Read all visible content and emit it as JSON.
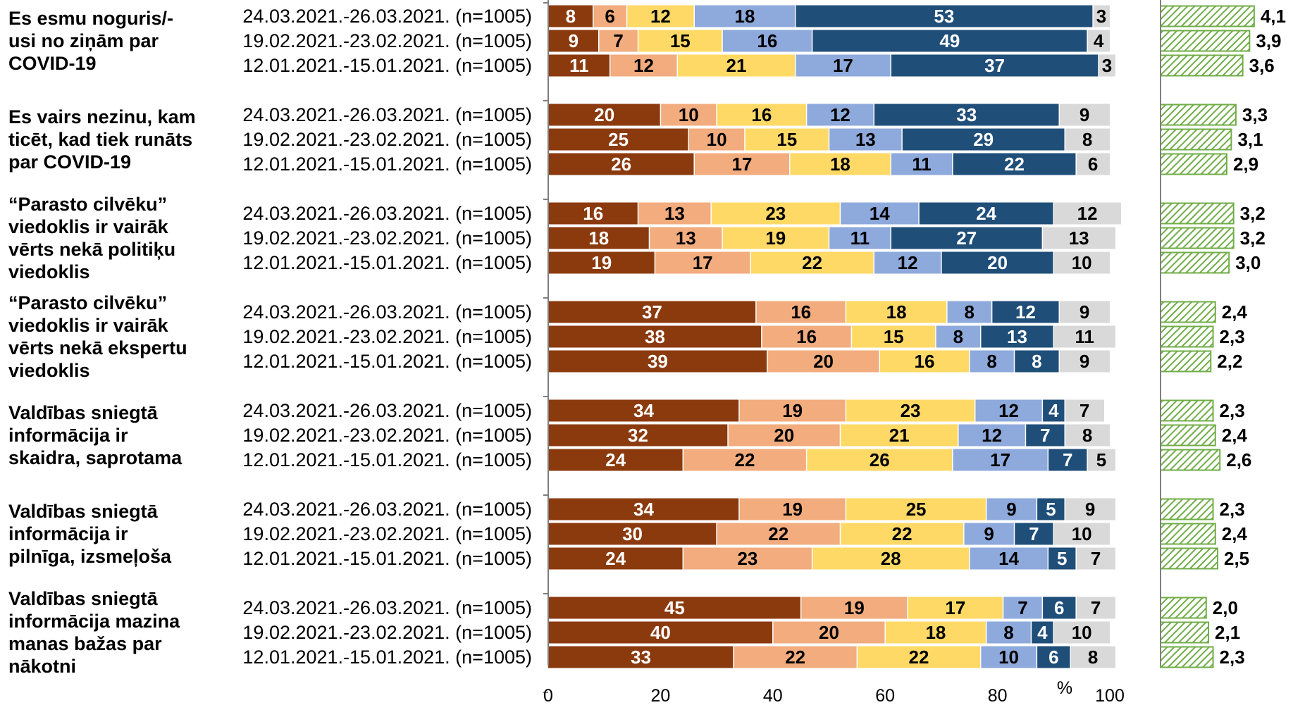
{
  "chart_data": {
    "type": "bar",
    "orientation": "horizontal",
    "stacked": true,
    "x_unit_label": "%",
    "xlim": [
      0,
      100
    ],
    "x_ticks": [
      "0",
      "20",
      "40",
      "60",
      "80",
      "100"
    ],
    "grid": false,
    "colors": [
      "#8B3A0E",
      "#F2AC7E",
      "#FFD966",
      "#8EA9DB",
      "#1F4E79",
      "#D9D9D9"
    ],
    "avg_color": "#70AD47",
    "avg_xlim": [
      0,
      5
    ],
    "groups": [
      {
        "label_lines": [
          "Es esmu noguris/-",
          "usi no ziņām par",
          "COVID-19"
        ],
        "rows": [
          {
            "label": "24.03.2021.-26.03.2021. (n=1005)",
            "values": [
              8,
              6,
              12,
              18,
              53,
              3
            ],
            "avg": "4,1"
          },
          {
            "label": "19.02.2021.-23.02.2021. (n=1005)",
            "values": [
              9,
              7,
              15,
              16,
              49,
              4
            ],
            "avg": "3,9"
          },
          {
            "label": "12.01.2021.-15.01.2021. (n=1005)",
            "values": [
              11,
              12,
              21,
              17,
              37,
              3
            ],
            "avg": "3,6"
          }
        ]
      },
      {
        "label_lines": [
          "Es vairs nezinu, kam",
          "ticēt, kad tiek runāts",
          "par COVID-19"
        ],
        "rows": [
          {
            "label": "24.03.2021.-26.03.2021. (n=1005)",
            "values": [
              20,
              10,
              16,
              12,
              33,
              9
            ],
            "avg": "3,3"
          },
          {
            "label": "19.02.2021.-23.02.2021. (n=1005)",
            "values": [
              25,
              10,
              15,
              13,
              29,
              8
            ],
            "avg": "3,1"
          },
          {
            "label": "12.01.2021.-15.01.2021. (n=1005)",
            "values": [
              26,
              17,
              18,
              11,
              22,
              6
            ],
            "avg": "2,9"
          }
        ]
      },
      {
        "label_lines": [
          "“Parasto cilvēku”",
          "viedoklis ir vairāk",
          "vērts nekā politiķu",
          "viedoklis"
        ],
        "rows": [
          {
            "label": "24.03.2021.-26.03.2021. (n=1005)",
            "values": [
              16,
              13,
              23,
              14,
              24,
              12
            ],
            "avg": "3,2"
          },
          {
            "label": "19.02.2021.-23.02.2021. (n=1005)",
            "values": [
              18,
              13,
              19,
              11,
              27,
              13
            ],
            "avg": "3,2"
          },
          {
            "label": "12.01.2021.-15.01.2021. (n=1005)",
            "values": [
              19,
              17,
              22,
              12,
              20,
              10
            ],
            "avg": "3,0"
          }
        ]
      },
      {
        "label_lines": [
          "“Parasto cilvēku”",
          "viedoklis ir vairāk",
          "vērts nekā ekspertu",
          "viedoklis"
        ],
        "rows": [
          {
            "label": "24.03.2021.-26.03.2021. (n=1005)",
            "values": [
              37,
              16,
              18,
              8,
              12,
              9
            ],
            "avg": "2,4"
          },
          {
            "label": "19.02.2021.-23.02.2021. (n=1005)",
            "values": [
              38,
              16,
              15,
              8,
              13,
              11
            ],
            "avg": "2,3"
          },
          {
            "label": "12.01.2021.-15.01.2021. (n=1005)",
            "values": [
              39,
              20,
              16,
              8,
              8,
              9
            ],
            "avg": "2,2"
          }
        ]
      },
      {
        "label_lines": [
          "Valdības sniegtā",
          "informācija ir",
          "skaidra, saprotama"
        ],
        "rows": [
          {
            "label": "24.03.2021.-26.03.2021. (n=1005)",
            "values": [
              34,
              19,
              23,
              12,
              4,
              7
            ],
            "avg": "2,3"
          },
          {
            "label": "19.02.2021.-23.02.2021. (n=1005)",
            "values": [
              32,
              20,
              21,
              12,
              7,
              8
            ],
            "avg": "2,4"
          },
          {
            "label": "12.01.2021.-15.01.2021. (n=1005)",
            "values": [
              24,
              22,
              26,
              17,
              7,
              5
            ],
            "avg": "2,6"
          }
        ]
      },
      {
        "label_lines": [
          "Valdības sniegtā",
          "informācija ir",
          "pilnīga, izsmeļoša"
        ],
        "rows": [
          {
            "label": "24.03.2021.-26.03.2021. (n=1005)",
            "values": [
              34,
              19,
              25,
              9,
              5,
              9
            ],
            "avg": "2,3"
          },
          {
            "label": "19.02.2021.-23.02.2021. (n=1005)",
            "values": [
              30,
              22,
              22,
              9,
              7,
              10
            ],
            "avg": "2,4"
          },
          {
            "label": "12.01.2021.-15.01.2021. (n=1005)",
            "values": [
              24,
              23,
              28,
              14,
              5,
              7
            ],
            "avg": "2,5"
          }
        ]
      },
      {
        "label_lines": [
          "Valdības sniegtā",
          "informācija mazina",
          "manas bažas par",
          "nākotni"
        ],
        "rows": [
          {
            "label": "24.03.2021.-26.03.2021. (n=1005)",
            "values": [
              45,
              19,
              17,
              7,
              6,
              7
            ],
            "avg": "2,0"
          },
          {
            "label": "19.02.2021.-23.02.2021. (n=1005)",
            "values": [
              40,
              20,
              18,
              8,
              4,
              10
            ],
            "avg": "2,1"
          },
          {
            "label": "12.01.2021.-15.01.2021. (n=1005)",
            "values": [
              33,
              22,
              22,
              10,
              6,
              8
            ],
            "avg": "2,3"
          }
        ]
      }
    ]
  }
}
